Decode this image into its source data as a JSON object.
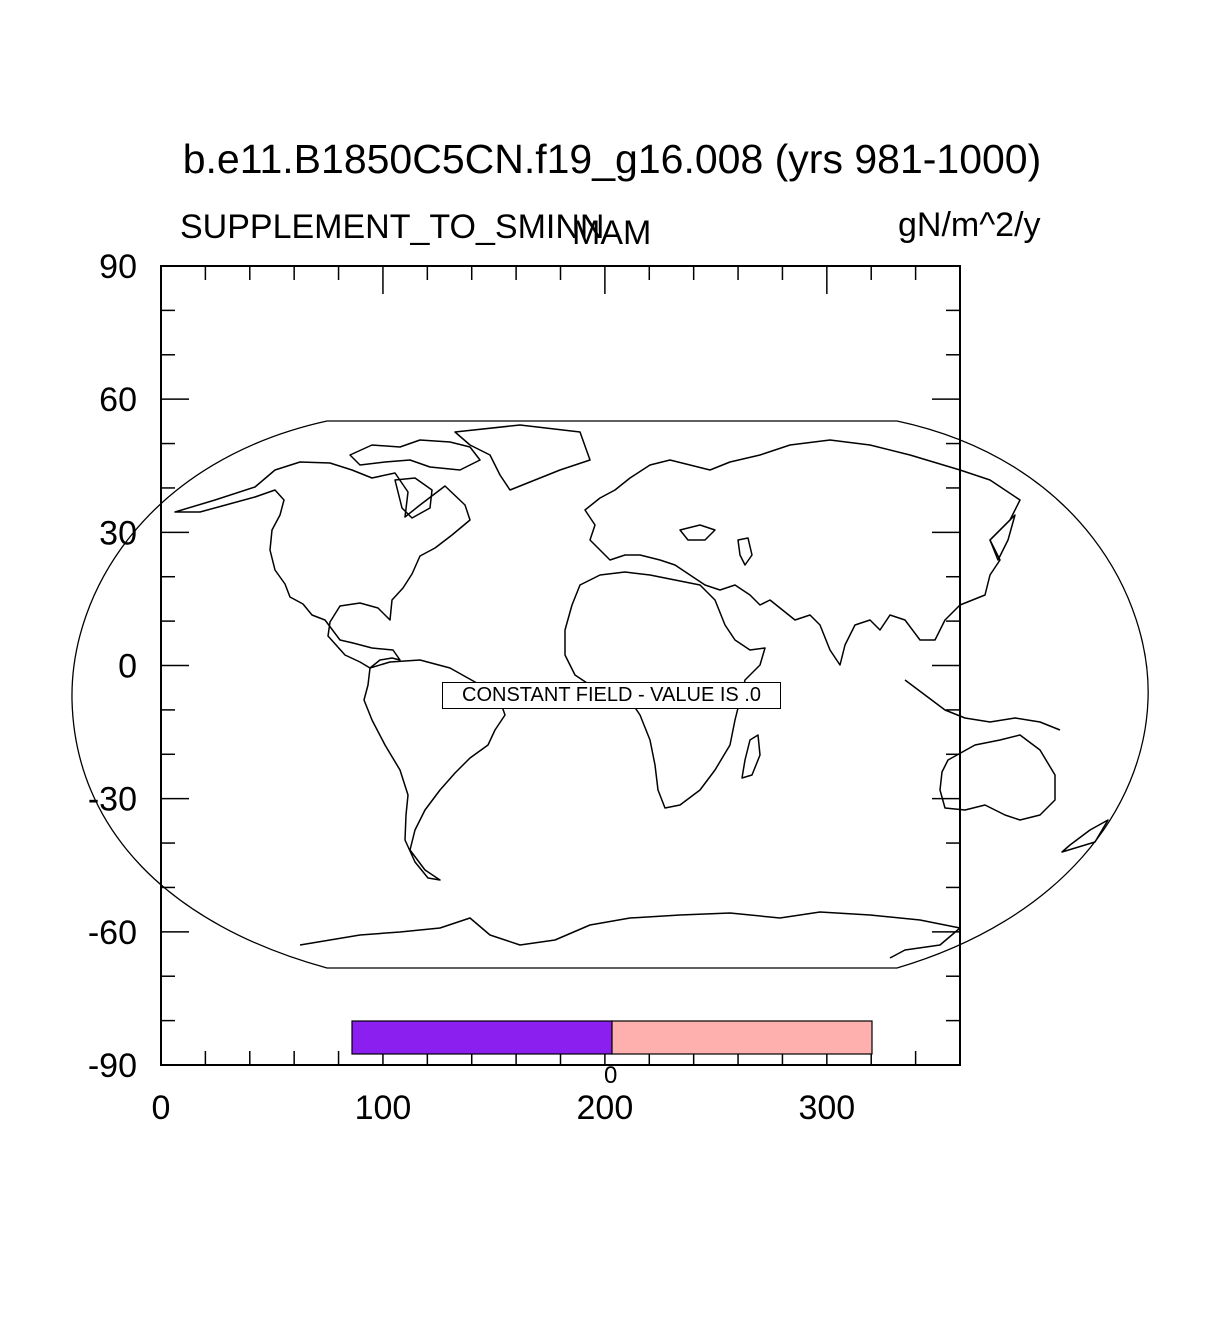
{
  "title": "b.e11.B1850C5CN.f19_g16.008 (yrs 981-1000)",
  "left_string": "SUPPLEMENT_TO_SMINN",
  "center_string": "MAM",
  "right_string": "gN/m^2/y",
  "constant_field_message": "CONSTANT FIELD - VALUE IS .0",
  "colors": {
    "labelbar_left": "#8a1ff0",
    "labelbar_right": "#fdb0ae"
  },
  "labelbar": {
    "labels": [
      "0"
    ]
  },
  "chart_data": {
    "type": "heatmap",
    "title": "b.e11.B1850C5CN.f19_g16.008 (yrs 981-1000)",
    "variable": "SUPPLEMENT_TO_SMINN",
    "season": "MAM",
    "units": "gN/m^2/y",
    "constant_value": 0,
    "xlim": [
      0,
      360
    ],
    "ylim": [
      -90,
      90
    ],
    "x_ticks": [
      0,
      100,
      200,
      300
    ],
    "y_ticks": [
      90,
      60,
      30,
      0,
      -30,
      -60,
      -90
    ],
    "x_tick_labels": [
      "0",
      "100",
      "200",
      "300"
    ],
    "y_tick_labels": [
      "90",
      "60",
      "30",
      "0",
      "-30",
      "-60",
      "-90"
    ]
  }
}
